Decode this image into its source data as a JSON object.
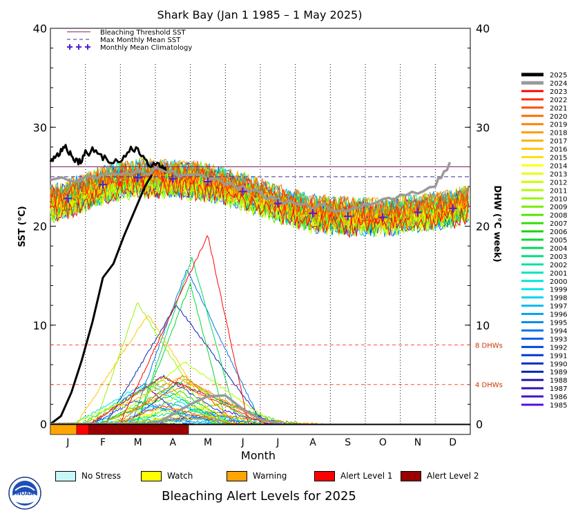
{
  "chart_data": {
    "type": "line",
    "title": "Shark Bay      (Jan 1 1985 – 1 May 2025)",
    "xlabel": "Month",
    "ylabel_left": "SST (°C)",
    "ylabel_right": "DHW (°C week)",
    "months": [
      "J",
      "F",
      "M",
      "A",
      "M",
      "J",
      "J",
      "A",
      "S",
      "O",
      "N",
      "D"
    ],
    "ylim_left": [
      0,
      40
    ],
    "ylim_right": [
      0,
      40
    ],
    "yticks_left": [
      0,
      10,
      20,
      30,
      40
    ],
    "yticks_right": [
      0,
      10,
      20,
      30,
      40
    ],
    "bleaching_threshold_sst": 26.0,
    "max_monthly_mean_sst": 25.0,
    "monthly_mean_climatology": [
      22.8,
      24.2,
      24.9,
      24.8,
      24.5,
      23.5,
      22.3,
      21.3,
      21.0,
      20.9,
      21.4,
      21.8
    ],
    "dhw_reference_lines": [
      {
        "value": 8,
        "label": "8 DHWs"
      },
      {
        "value": 4,
        "label": "4 DHWs"
      }
    ],
    "legend_top": [
      {
        "label": "Bleaching Threshold SST",
        "style": "solid",
        "color": "#7a1f5c"
      },
      {
        "label": "Max Monthly Mean SST",
        "style": "dashed",
        "color": "#3a2f9e"
      },
      {
        "label": "Monthly Mean Climatology",
        "style": "plus",
        "color": "#4b1fd1"
      }
    ],
    "years": [
      "2025",
      "2024",
      "2023",
      "2022",
      "2021",
      "2020",
      "2019",
      "2018",
      "2017",
      "2016",
      "2015",
      "2014",
      "2013",
      "2012",
      "2011",
      "2010",
      "2009",
      "2008",
      "2007",
      "2006",
      "2005",
      "2004",
      "2003",
      "2002",
      "2001",
      "2000",
      "1999",
      "1998",
      "1997",
      "1996",
      "1995",
      "1994",
      "1993",
      "1992",
      "1991",
      "1990",
      "1989",
      "1988",
      "1987",
      "1986",
      "1985"
    ],
    "series": [
      {
        "name": "2025",
        "role": "sst",
        "x": [
          0.0,
          0.2,
          0.4,
          0.6,
          0.8,
          1.0,
          1.3,
          1.6,
          2.0,
          2.3,
          2.6,
          2.9,
          3.2,
          3.33
        ],
        "values": [
          26.5,
          27.2,
          28.1,
          27.3,
          26.4,
          27.4,
          27.8,
          26.7,
          26.5,
          27.9,
          27.3,
          26.1,
          26.0,
          25.5
        ]
      },
      {
        "name": "2025",
        "role": "dhw",
        "x": [
          0.0,
          0.3,
          0.6,
          0.9,
          1.2,
          1.5,
          1.8,
          2.1,
          2.4,
          2.7,
          2.9
        ],
        "values": [
          0.0,
          0.8,
          3.2,
          6.5,
          10.3,
          14.8,
          16.2,
          19.0,
          21.5,
          24.0,
          25.2
        ]
      },
      {
        "name": "2024",
        "role": "sst",
        "x": [
          0,
          1,
          2,
          3,
          4,
          5,
          6,
          7,
          8,
          9,
          10,
          11,
          11.5
        ],
        "values": [
          24.3,
          25.0,
          25.4,
          25.6,
          25.2,
          24.3,
          23.2,
          22.1,
          21.8,
          22.0,
          23.1,
          24.2,
          26.5
        ]
      },
      {
        "name": "2024",
        "role": "dhw",
        "x": [
          0,
          1,
          2,
          3,
          4,
          4.5,
          5,
          5.5,
          6,
          6.6
        ],
        "values": [
          0,
          0,
          0,
          0,
          2.0,
          2.8,
          2.9,
          1.5,
          0.5,
          0
        ]
      }
    ],
    "alert_bar": {
      "segments": [
        {
          "level": "Warning",
          "from": 0.0,
          "to": 0.75
        },
        {
          "level": "Alert Level 1",
          "from": 0.75,
          "to": 1.1
        },
        {
          "level": "Alert Level 2",
          "from": 1.1,
          "to": 3.95
        }
      ]
    }
  },
  "alert_legend": [
    {
      "label": "No Stress",
      "color": "#c8f7f7"
    },
    {
      "label": "Watch",
      "color": "#ffff00"
    },
    {
      "label": "Warning",
      "color": "#ffa500"
    },
    {
      "label": "Alert Level 1",
      "color": "#ff0000"
    },
    {
      "label": "Alert Level 2",
      "color": "#990000"
    }
  ],
  "footer_title": "Bleaching Alert Levels for 2025",
  "logo_text": "NOAA",
  "colors": {
    "threshold": "#7a1f5c",
    "mmm": "#3a2f9e",
    "climatology": "#4b1fd1",
    "dhw_ref": "#ff4d2a",
    "dhw_ref_text": "#cc3300"
  }
}
